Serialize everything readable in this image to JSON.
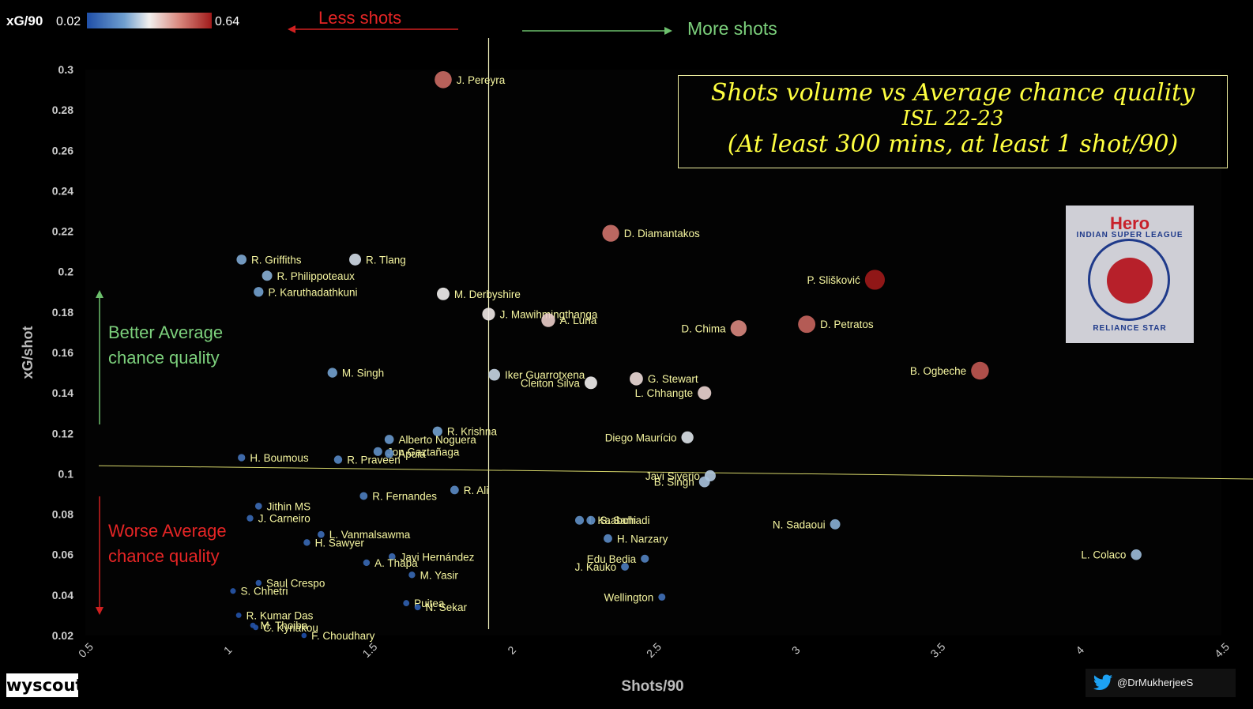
{
  "colorbar": {
    "label": "xG/90",
    "min_label": "0.02",
    "max_label": "0.64",
    "colors": [
      "#1f4fa8",
      "#6f9fcf",
      "#f2f0ee",
      "#d8847a",
      "#a01a1a"
    ]
  },
  "annotations": {
    "less_shots": "Less shots",
    "more_shots": "More shots",
    "better_line1": "Better Average",
    "better_line2": "chance quality",
    "worse_line1": "Worse Average",
    "worse_line2": "chance quality"
  },
  "title": {
    "line1": "Shots volume vs Average chance quality",
    "line2": "ISL 22-23",
    "line3": "(At least 300 mins, at least 1 shot/90)"
  },
  "logo": {
    "brand": "Hero",
    "text_top": "INDIAN SUPER LEAGUE",
    "text_bottom": "RELIANCE STAR"
  },
  "footer": {
    "wyscout": "wyscout",
    "twitter": "@DrMukherjeeS"
  },
  "chart_data": {
    "type": "scatter",
    "xlabel": "Shots/90",
    "ylabel": "xG/shot",
    "xlim": [
      0.5,
      4.5
    ],
    "ylim": [
      0.02,
      0.3
    ],
    "xticks": [
      "0.5",
      "1",
      "1.5",
      "2",
      "2.5",
      "3",
      "3.5",
      "4",
      "4.5"
    ],
    "yticks": [
      "0.3",
      "0.28",
      "0.26",
      "0.24",
      "0.22",
      "0.2",
      "0.18",
      "0.16",
      "0.14",
      "0.12",
      "0.1",
      "0.08",
      "0.06",
      "0.04",
      "0.02"
    ],
    "reference_lines": {
      "x_mean": 1.92,
      "y_mean_start": 0.104,
      "y_mean_end": 0.099
    },
    "points": [
      {
        "name": "J. Pereyra",
        "x": 1.76,
        "y": 0.295,
        "xg90": 0.52
      },
      {
        "name": "D. Diamantakos",
        "x": 2.35,
        "y": 0.219,
        "xg90": 0.51
      },
      {
        "name": "R. Griffiths",
        "x": 1.05,
        "y": 0.206,
        "xg90": 0.22
      },
      {
        "name": "R. Tlang",
        "x": 1.45,
        "y": 0.206,
        "xg90": 0.3
      },
      {
        "name": "R. Philippoteaux",
        "x": 1.14,
        "y": 0.198,
        "xg90": 0.23
      },
      {
        "name": "P. Slišković",
        "x": 3.28,
        "y": 0.196,
        "xg90": 0.64
      },
      {
        "name": "P. Karuthadathkuni",
        "x": 1.11,
        "y": 0.19,
        "xg90": 0.21
      },
      {
        "name": "M. Derbyshire",
        "x": 1.76,
        "y": 0.189,
        "xg90": 0.33
      },
      {
        "name": "J. Mawihmingthanga",
        "x": 1.92,
        "y": 0.179,
        "xg90": 0.34
      },
      {
        "name": "A. Luna",
        "x": 2.13,
        "y": 0.176,
        "xg90": 0.38
      },
      {
        "name": "D. Petratos",
        "x": 3.04,
        "y": 0.174,
        "xg90": 0.53
      },
      {
        "name": "D. Chima",
        "x": 2.8,
        "y": 0.172,
        "xg90": 0.48
      },
      {
        "name": "B. Ogbeche",
        "x": 3.65,
        "y": 0.151,
        "xg90": 0.55
      },
      {
        "name": "M. Singh",
        "x": 1.37,
        "y": 0.15,
        "xg90": 0.21
      },
      {
        "name": "Iker Guarrotxena",
        "x": 1.94,
        "y": 0.149,
        "xg90": 0.29
      },
      {
        "name": "Cleiton Silva",
        "x": 2.28,
        "y": 0.145,
        "xg90": 0.33
      },
      {
        "name": "G. Stewart",
        "x": 2.44,
        "y": 0.147,
        "xg90": 0.36
      },
      {
        "name": "L. Chhangte",
        "x": 2.68,
        "y": 0.14,
        "xg90": 0.37
      },
      {
        "name": "R. Krishna",
        "x": 1.74,
        "y": 0.121,
        "xg90": 0.21
      },
      {
        "name": "Alberto Noguera",
        "x": 1.57,
        "y": 0.117,
        "xg90": 0.19
      },
      {
        "name": "Diego Maurício",
        "x": 2.62,
        "y": 0.118,
        "xg90": 0.31
      },
      {
        "name": "Jon Gaztañaga",
        "x": 1.53,
        "y": 0.111,
        "xg90": 0.17
      },
      {
        "name": "Apuia",
        "x": 1.57,
        "y": 0.11,
        "xg90": 0.17
      },
      {
        "name": "H. Boumous",
        "x": 1.05,
        "y": 0.108,
        "xg90": 0.11
      },
      {
        "name": "R. Praveen",
        "x": 1.39,
        "y": 0.107,
        "xg90": 0.15
      },
      {
        "name": "Javi Siverio",
        "x": 2.7,
        "y": 0.099,
        "xg90": 0.27
      },
      {
        "name": "B. Singh",
        "x": 2.68,
        "y": 0.096,
        "xg90": 0.26
      },
      {
        "name": "R. Ali",
        "x": 1.8,
        "y": 0.092,
        "xg90": 0.16
      },
      {
        "name": "R. Fernandes",
        "x": 1.48,
        "y": 0.089,
        "xg90": 0.13
      },
      {
        "name": "Jithin MS",
        "x": 1.11,
        "y": 0.084,
        "xg90": 0.09
      },
      {
        "name": "J. Carneiro",
        "x": 1.08,
        "y": 0.078,
        "xg90": 0.08
      },
      {
        "name": "I. Kaabchi",
        "x": 2.24,
        "y": 0.077,
        "xg90": 0.17
      },
      {
        "name": "S. Sarhadi",
        "x": 2.28,
        "y": 0.077,
        "xg90": 0.17
      },
      {
        "name": "N. Sadaoui",
        "x": 3.14,
        "y": 0.075,
        "xg90": 0.23
      },
      {
        "name": "L. Vanmalsawma",
        "x": 1.33,
        "y": 0.07,
        "xg90": 0.09
      },
      {
        "name": "H. Narzary",
        "x": 2.34,
        "y": 0.068,
        "xg90": 0.16
      },
      {
        "name": "H. Sawyer",
        "x": 1.28,
        "y": 0.066,
        "xg90": 0.08
      },
      {
        "name": "L. Colaco",
        "x": 4.2,
        "y": 0.06,
        "xg90": 0.25
      },
      {
        "name": "Javi Hernández",
        "x": 1.58,
        "y": 0.059,
        "xg90": 0.09
      },
      {
        "name": "Edu Bedia",
        "x": 2.47,
        "y": 0.058,
        "xg90": 0.14
      },
      {
        "name": "A. Thapa",
        "x": 1.49,
        "y": 0.056,
        "xg90": 0.08
      },
      {
        "name": "J. Kauko",
        "x": 2.4,
        "y": 0.054,
        "xg90": 0.13
      },
      {
        "name": "M. Yasir",
        "x": 1.65,
        "y": 0.05,
        "xg90": 0.08
      },
      {
        "name": "Saul Crespo",
        "x": 1.11,
        "y": 0.046,
        "xg90": 0.05
      },
      {
        "name": "S. Chhetri",
        "x": 1.02,
        "y": 0.042,
        "xg90": 0.04
      },
      {
        "name": "Wellington",
        "x": 2.53,
        "y": 0.039,
        "xg90": 0.1
      },
      {
        "name": "Puitea",
        "x": 1.63,
        "y": 0.036,
        "xg90": 0.06
      },
      {
        "name": "N. Sekar",
        "x": 1.67,
        "y": 0.034,
        "xg90": 0.06
      },
      {
        "name": "R. Kumar Das",
        "x": 1.04,
        "y": 0.03,
        "xg90": 0.03
      },
      {
        "name": "M. Thoiba",
        "x": 1.09,
        "y": 0.025,
        "xg90": 0.03
      },
      {
        "name": "C. Kyriakou",
        "x": 1.1,
        "y": 0.024,
        "xg90": 0.03
      },
      {
        "name": "F. Choudhary",
        "x": 1.27,
        "y": 0.02,
        "xg90": 0.02
      }
    ]
  }
}
